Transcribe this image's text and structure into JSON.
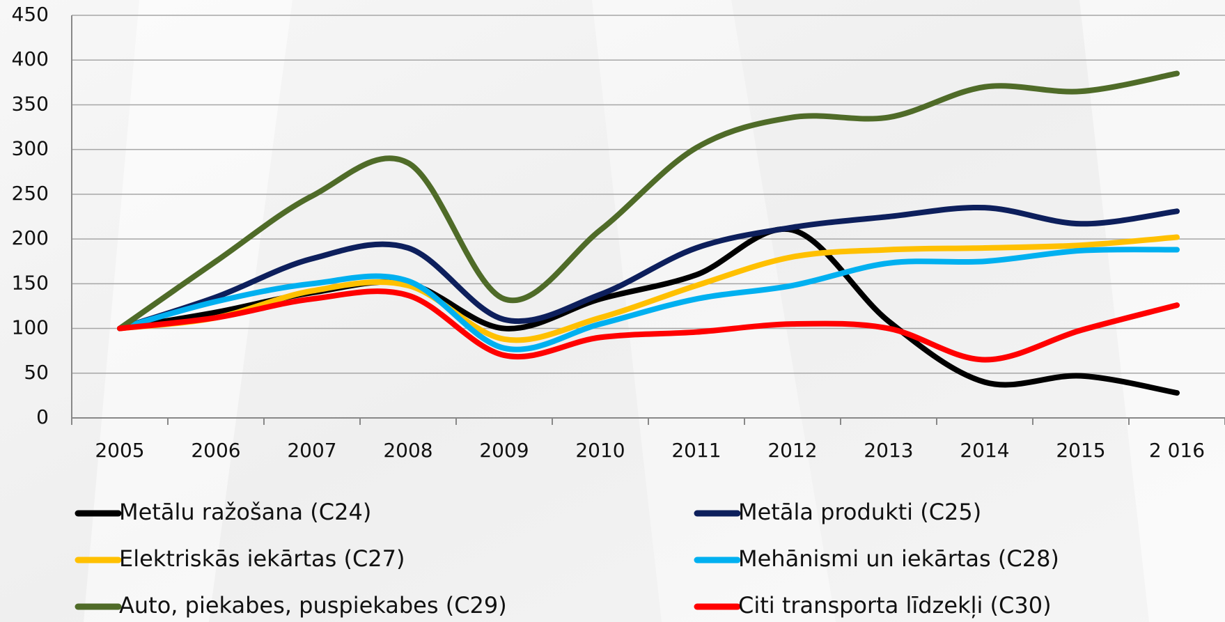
{
  "chart_data": {
    "type": "line",
    "categories": [
      "2005",
      "2006",
      "2007",
      "2008",
      "2009",
      "2010",
      "2011",
      "2012",
      "2013",
      "2014",
      "2015",
      "2 016"
    ],
    "series": [
      {
        "name": "Metālu ražošana (C24)",
        "color": "#000000",
        "values": [
          100,
          118,
          140,
          150,
          100,
          133,
          160,
          210,
          108,
          40,
          47,
          28
        ]
      },
      {
        "name": "Metāla produkti (C25)",
        "color": "#0d1f5c",
        "values": [
          100,
          135,
          178,
          190,
          110,
          138,
          190,
          213,
          225,
          235,
          217,
          231
        ]
      },
      {
        "name": "Elektriskās iekārtas (C27)",
        "color": "#ffc000",
        "values": [
          100,
          112,
          142,
          148,
          88,
          112,
          148,
          180,
          188,
          190,
          193,
          202
        ]
      },
      {
        "name": "Mehānismi un iekārtas (C28)",
        "color": "#00b0f0",
        "values": [
          100,
          130,
          150,
          153,
          78,
          105,
          133,
          148,
          173,
          175,
          187,
          188
        ]
      },
      {
        "name": "Auto, piekabes, puspiekabes (C29)",
        "color": "#4f6b28",
        "values": [
          100,
          175,
          248,
          285,
          133,
          210,
          302,
          336,
          336,
          370,
          365,
          385
        ]
      },
      {
        "name": "Citi transporta līdzekļi (C30)",
        "color": "#ff0000",
        "values": [
          100,
          112,
          133,
          137,
          70,
          90,
          96,
          105,
          100,
          65,
          98,
          126
        ]
      }
    ],
    "ylim": [
      0,
      450
    ],
    "yticks": [
      0,
      50,
      100,
      150,
      200,
      250,
      300,
      350,
      400,
      450
    ],
    "grid": true
  }
}
